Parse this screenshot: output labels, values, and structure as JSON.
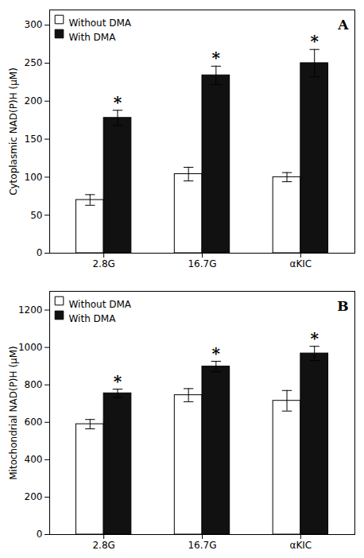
{
  "chart_data": [
    {
      "type": "bar",
      "title": "A",
      "ylabel": "Cytoplasmic NAD(P)H (μM)",
      "categories": [
        "2.8G",
        "16.7G",
        "αKIC"
      ],
      "series": [
        {
          "name": "Without DMA",
          "color": "#ffffff",
          "values": [
            70,
            104,
            100
          ],
          "error": [
            7,
            9,
            6
          ]
        },
        {
          "name": "With DMA",
          "color": "#111111",
          "values": [
            178,
            234,
            250
          ],
          "error": [
            10,
            12,
            18
          ],
          "annotations": [
            "*",
            "*",
            "*"
          ]
        }
      ],
      "ylim": [
        0,
        320
      ],
      "yticks": [
        0,
        50,
        100,
        150,
        200,
        250,
        300
      ],
      "grid": false,
      "legend": "upper left"
    },
    {
      "type": "bar",
      "title": "B",
      "ylabel": "Mitochondrial NAD(P)H (μM)",
      "categories": [
        "2.8G",
        "16.7G",
        "αKIC"
      ],
      "series": [
        {
          "name": "Without DMA",
          "color": "#ffffff",
          "values": [
            590,
            745,
            715
          ],
          "error": [
            25,
            35,
            55
          ]
        },
        {
          "name": "With DMA",
          "color": "#111111",
          "values": [
            755,
            898,
            968
          ],
          "error": [
            22,
            28,
            38
          ],
          "annotations": [
            "*",
            "*",
            "*"
          ]
        }
      ],
      "ylim": [
        0,
        1300
      ],
      "yticks": [
        0,
        200,
        400,
        600,
        800,
        1000,
        1200
      ],
      "grid": false,
      "legend": "upper left"
    }
  ]
}
